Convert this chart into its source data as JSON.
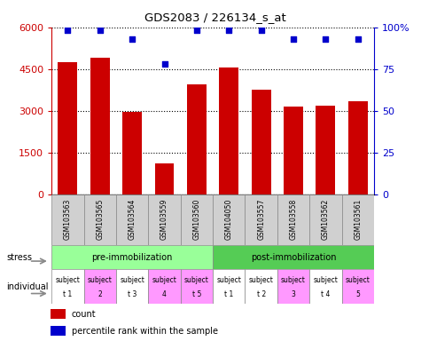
{
  "title": "GDS2083 / 226134_s_at",
  "samples": [
    "GSM103563",
    "GSM103565",
    "GSM103564",
    "GSM103559",
    "GSM103560",
    "GSM104050",
    "GSM103557",
    "GSM103558",
    "GSM103562",
    "GSM103561"
  ],
  "counts": [
    4750,
    4900,
    2950,
    1100,
    3950,
    4550,
    3750,
    3150,
    3200,
    3350
  ],
  "percentiles": [
    98,
    98,
    93,
    78,
    98,
    98,
    98,
    93,
    93,
    93
  ],
  "ylim_left": [
    0,
    6000
  ],
  "ylim_right": [
    0,
    100
  ],
  "yticks_left": [
    0,
    1500,
    3000,
    4500,
    6000
  ],
  "ytick_labels_left": [
    "0",
    "1500",
    "3000",
    "4500",
    "6000"
  ],
  "yticks_right": [
    0,
    25,
    50,
    75,
    100
  ],
  "ytick_labels_right": [
    "0",
    "25",
    "50",
    "75",
    "100%"
  ],
  "bar_color": "#cc0000",
  "dot_color": "#0000cc",
  "stress_labels": [
    "pre-immobilization",
    "post-immobilization"
  ],
  "stress_pre_color": "#99ff99",
  "stress_post_color": "#55cc55",
  "individual_labels": [
    "subject\nt 1",
    "subject\n2",
    "subject\nt 3",
    "subject\n4",
    "subject\nt 5",
    "subject\nt 1",
    "subject\nt 2",
    "subject\n3",
    "subject\nt 4",
    "subject\n5"
  ],
  "individual_colors": [
    "#ffffff",
    "#ff99ff",
    "#ffffff",
    "#ff99ff",
    "#ff99ff",
    "#ffffff",
    "#ffffff",
    "#ff99ff",
    "#ffffff",
    "#ff99ff"
  ],
  "sample_bg_color": "#d0d0d0",
  "bg_color": "#ffffff",
  "label_color_left": "#cc0000",
  "label_color_right": "#0000cc",
  "legend_count_label": "count",
  "legend_pct_label": "percentile rank within the sample",
  "stress_row_label": "stress",
  "individual_row_label": "individual"
}
